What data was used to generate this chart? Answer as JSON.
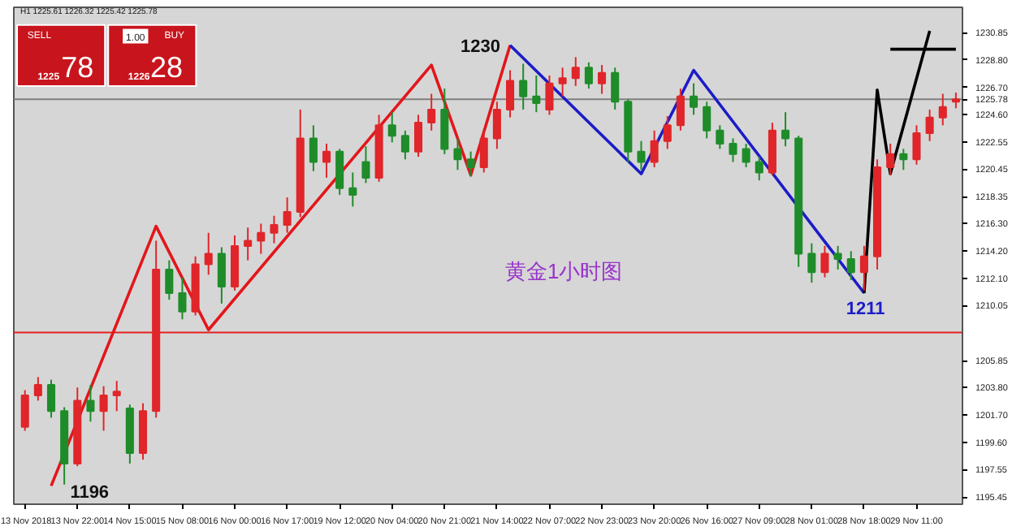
{
  "chart_data": {
    "type": "candlestick",
    "categories": [
      "13 Nov 2018",
      null,
      null,
      null,
      "13 Nov 22:00",
      null,
      null,
      null,
      "14 Nov 15:00",
      null,
      null,
      null,
      "15 Nov 08:00",
      null,
      null,
      null,
      "16 Nov 00:00",
      null,
      null,
      null,
      "16 Nov 17:00",
      null,
      null,
      null,
      "19 Nov 12:00",
      null,
      null,
      null,
      "20 Nov 04:00",
      null,
      null,
      null,
      "20 Nov 21:00",
      null,
      null,
      null,
      "21 Nov 14:00",
      null,
      null,
      null,
      "22 Nov 07:00",
      null,
      null,
      null,
      "22 Nov 23:00",
      null,
      null,
      null,
      "23 Nov 20:00",
      null,
      null,
      null,
      "26 Nov 16:00",
      null,
      null,
      null,
      "27 Nov 09:00",
      null,
      null,
      null,
      "28 Nov 01:00",
      null,
      null,
      null,
      "28 Nov 18:00",
      null,
      null,
      null,
      "29 Nov 11:00",
      null,
      null,
      null
    ],
    "ohlc": [
      [
        1200.8,
        1203.6,
        1200.5,
        1203.2
      ],
      [
        1203.2,
        1204.6,
        1202.8,
        1204.0
      ],
      [
        1204.0,
        1204.4,
        1201.5,
        1202.0
      ],
      [
        1202.0,
        1202.3,
        1196.4,
        1198.0
      ],
      [
        1198.0,
        1203.8,
        1197.8,
        1202.8
      ],
      [
        1202.8,
        1204.0,
        1201.2,
        1202.0
      ],
      [
        1202.0,
        1203.9,
        1200.5,
        1203.2
      ],
      [
        1203.2,
        1204.3,
        1202.0,
        1203.5
      ],
      [
        1202.2,
        1202.5,
        1198.0,
        1198.8
      ],
      [
        1198.8,
        1202.6,
        1198.3,
        1202.0
      ],
      [
        1202.0,
        1215.0,
        1201.5,
        1212.8
      ],
      [
        1212.8,
        1213.5,
        1210.5,
        1211.0
      ],
      [
        1211.0,
        1212.2,
        1209.0,
        1209.6
      ],
      [
        1209.6,
        1213.8,
        1209.3,
        1213.2
      ],
      [
        1213.2,
        1215.6,
        1212.4,
        1214.0
      ],
      [
        1214.0,
        1214.5,
        1210.2,
        1211.5
      ],
      [
        1211.5,
        1215.4,
        1211.2,
        1214.6
      ],
      [
        1214.6,
        1216.0,
        1213.5,
        1215.0
      ],
      [
        1215.0,
        1216.3,
        1214.0,
        1215.6
      ],
      [
        1215.6,
        1216.9,
        1214.8,
        1216.2
      ],
      [
        1216.2,
        1218.3,
        1215.6,
        1217.2
      ],
      [
        1217.2,
        1225.0,
        1216.8,
        1222.8
      ],
      [
        1222.8,
        1223.8,
        1220.3,
        1221.0
      ],
      [
        1221.0,
        1222.4,
        1219.8,
        1221.8
      ],
      [
        1221.8,
        1222.0,
        1218.5,
        1219.0
      ],
      [
        1219.0,
        1220.2,
        1217.6,
        1218.5
      ],
      [
        1221.0,
        1222.2,
        1219.4,
        1219.8
      ],
      [
        1219.8,
        1224.6,
        1219.5,
        1223.8
      ],
      [
        1223.8,
        1224.8,
        1222.5,
        1223.0
      ],
      [
        1223.0,
        1223.4,
        1221.2,
        1221.8
      ],
      [
        1221.8,
        1224.6,
        1221.4,
        1224.0
      ],
      [
        1224.0,
        1226.2,
        1223.4,
        1225.0
      ],
      [
        1225.0,
        1226.6,
        1221.6,
        1222.0
      ],
      [
        1222.0,
        1222.8,
        1220.4,
        1221.2
      ],
      [
        1221.2,
        1221.8,
        1219.9,
        1220.6
      ],
      [
        1220.6,
        1223.5,
        1220.2,
        1222.8
      ],
      [
        1222.8,
        1225.6,
        1222.0,
        1225.0
      ],
      [
        1225.0,
        1228.0,
        1224.4,
        1227.2
      ],
      [
        1227.2,
        1228.5,
        1225.0,
        1226.0
      ],
      [
        1226.0,
        1227.6,
        1224.8,
        1225.5
      ],
      [
        1225.0,
        1227.6,
        1224.6,
        1227.0
      ],
      [
        1227.0,
        1228.2,
        1226.0,
        1227.4
      ],
      [
        1227.4,
        1229.0,
        1226.8,
        1228.2
      ],
      [
        1228.2,
        1228.6,
        1226.6,
        1227.0
      ],
      [
        1227.0,
        1228.4,
        1226.2,
        1227.8
      ],
      [
        1227.8,
        1228.2,
        1225.0,
        1225.6
      ],
      [
        1225.6,
        1225.8,
        1221.0,
        1221.8
      ],
      [
        1221.8,
        1222.6,
        1220.4,
        1221.0
      ],
      [
        1221.0,
        1223.4,
        1220.6,
        1222.6
      ],
      [
        1222.6,
        1224.5,
        1222.0,
        1223.8
      ],
      [
        1223.8,
        1226.6,
        1223.4,
        1226.0
      ],
      [
        1226.0,
        1227.0,
        1224.6,
        1225.2
      ],
      [
        1225.2,
        1225.6,
        1222.8,
        1223.4
      ],
      [
        1223.4,
        1223.8,
        1222.0,
        1222.4
      ],
      [
        1222.4,
        1222.8,
        1221.0,
        1221.6
      ],
      [
        1222.0,
        1222.4,
        1220.6,
        1221.0
      ],
      [
        1221.0,
        1221.4,
        1219.6,
        1220.2
      ],
      [
        1220.2,
        1224.0,
        1220.0,
        1223.4
      ],
      [
        1223.4,
        1224.8,
        1222.2,
        1222.8
      ],
      [
        1222.8,
        1223.0,
        1213.0,
        1214.0
      ],
      [
        1214.0,
        1214.8,
        1211.8,
        1212.6
      ],
      [
        1212.6,
        1214.6,
        1212.2,
        1214.0
      ],
      [
        1214.0,
        1214.6,
        1212.8,
        1213.6
      ],
      [
        1213.6,
        1214.2,
        1212.0,
        1212.6
      ],
      [
        1212.6,
        1214.6,
        1211.2,
        1213.8
      ],
      [
        1213.8,
        1221.2,
        1212.8,
        1220.6
      ],
      [
        1220.6,
        1222.4,
        1220.0,
        1221.6
      ],
      [
        1221.6,
        1222.0,
        1220.4,
        1221.2
      ],
      [
        1221.2,
        1223.8,
        1220.8,
        1223.2
      ],
      [
        1223.2,
        1225.0,
        1222.6,
        1224.4
      ],
      [
        1224.4,
        1226.2,
        1223.8,
        1225.2
      ],
      [
        1225.6,
        1226.3,
        1225.1,
        1225.78
      ]
    ],
    "colors": [
      "#e0262a",
      "#e0262a",
      "#1f8c2a",
      "#1f8c2a",
      "#e0262a",
      "#1f8c2a",
      "#e0262a",
      "#e0262a",
      "#1f8c2a",
      "#e0262a",
      "#e0262a",
      "#1f8c2a",
      "#1f8c2a",
      "#e0262a",
      "#e0262a",
      "#1f8c2a",
      "#e0262a",
      "#e0262a",
      "#e0262a",
      "#e0262a",
      "#e0262a",
      "#e0262a",
      "#1f8c2a",
      "#e0262a",
      "#1f8c2a",
      "#1f8c2a",
      "#1f8c2a",
      "#e0262a",
      "#1f8c2a",
      "#1f8c2a",
      "#e0262a",
      "#e0262a",
      "#1f8c2a",
      "#1f8c2a",
      "#1f8c2a",
      "#e0262a",
      "#e0262a",
      "#e0262a",
      "#1f8c2a",
      "#1f8c2a",
      "#e0262a",
      "#e0262a",
      "#e0262a",
      "#1f8c2a",
      "#e0262a",
      "#1f8c2a",
      "#1f8c2a",
      "#1f8c2a",
      "#e0262a",
      "#e0262a",
      "#e0262a",
      "#1f8c2a",
      "#1f8c2a",
      "#1f8c2a",
      "#1f8c2a",
      "#1f8c2a",
      "#1f8c2a",
      "#e0262a",
      "#1f8c2a",
      "#1f8c2a",
      "#1f8c2a",
      "#e0262a",
      "#1f8c2a",
      "#1f8c2a",
      "#e0262a",
      "#e0262a",
      "#e0262a",
      "#1f8c2a",
      "#e0262a",
      "#e0262a",
      "#e0262a",
      "#e0262a"
    ],
    "series": [
      {
        "type": "line",
        "color": "#e3161b",
        "values": [
          null,
          null,
          1196.3,
          null,
          null,
          null,
          null,
          null,
          null,
          null,
          1216.1,
          null,
          null,
          null,
          1208.2,
          null,
          null,
          null,
          null,
          null,
          null,
          null,
          null,
          null,
          null,
          null,
          null,
          null,
          null,
          null,
          null,
          1228.4,
          null,
          null,
          1220.0,
          null,
          null,
          1229.9,
          null,
          null,
          null,
          null,
          null,
          null,
          null,
          null,
          null,
          null,
          null,
          null,
          null,
          null,
          null,
          null,
          null,
          null,
          null,
          null,
          null,
          null,
          null,
          null,
          null,
          null,
          null,
          null,
          null,
          null,
          null,
          null,
          null,
          null
        ]
      },
      {
        "type": "line",
        "color": "#1c1cc8",
        "values": [
          null,
          null,
          null,
          null,
          null,
          null,
          null,
          null,
          null,
          null,
          null,
          null,
          null,
          null,
          null,
          null,
          null,
          null,
          null,
          null,
          null,
          null,
          null,
          null,
          null,
          null,
          null,
          null,
          null,
          null,
          null,
          null,
          null,
          null,
          null,
          null,
          null,
          1229.9,
          null,
          null,
          null,
          null,
          null,
          null,
          null,
          null,
          null,
          1220.1,
          null,
          null,
          null,
          1228.0,
          null,
          null,
          null,
          null,
          null,
          null,
          null,
          null,
          null,
          null,
          null,
          null,
          1211.0,
          null,
          null,
          null,
          null,
          null,
          null,
          null
        ]
      },
      {
        "type": "line",
        "color": "#000000",
        "values": [
          null,
          null,
          null,
          null,
          null,
          null,
          null,
          null,
          null,
          null,
          null,
          null,
          null,
          null,
          null,
          null,
          null,
          null,
          null,
          null,
          null,
          null,
          null,
          null,
          null,
          null,
          null,
          null,
          null,
          null,
          null,
          null,
          null,
          null,
          null,
          null,
          null,
          null,
          null,
          null,
          null,
          null,
          null,
          null,
          null,
          null,
          null,
          null,
          null,
          null,
          null,
          null,
          null,
          null,
          null,
          null,
          null,
          null,
          null,
          null,
          null,
          null,
          null,
          null,
          1211.0,
          1226.5,
          1220.1,
          null,
          null,
          1231.0,
          null,
          null
        ]
      },
      {
        "type": "line",
        "color": "#000000",
        "values": [
          null,
          null,
          null,
          null,
          null,
          null,
          null,
          null,
          null,
          null,
          null,
          null,
          null,
          null,
          null,
          null,
          null,
          null,
          null,
          null,
          null,
          null,
          null,
          null,
          null,
          null,
          null,
          null,
          null,
          null,
          null,
          null,
          null,
          null,
          null,
          null,
          null,
          null,
          null,
          null,
          null,
          null,
          null,
          null,
          null,
          null,
          null,
          null,
          null,
          null,
          null,
          null,
          null,
          null,
          null,
          null,
          null,
          null,
          null,
          null,
          null,
          null,
          null,
          null,
          null,
          null,
          1229.6,
          null,
          null,
          null,
          null,
          1229.6
        ]
      }
    ],
    "ref_lines": [
      {
        "axis": "y",
        "value": 1225.78,
        "label": "1225.78",
        "color": "#808080"
      },
      {
        "axis": "y",
        "value": 1208.0,
        "color": "#e32020"
      }
    ],
    "annotations": [
      "1196",
      "1230",
      "1211",
      "黄金1小时图",
      "H1  1225.61 1226.32 1225.42 1225.78",
      "SELL",
      "1.00",
      "BUY",
      "1225",
      "78",
      "1226",
      "28"
    ],
    "ylim": [
      1194.9,
      1232.8
    ],
    "yticks": [
      1230.85,
      {
        "value": 1228.8,
        "label": "1228.80"
      },
      {
        "value": 1226.7,
        "label": "1226.70"
      },
      {
        "value": 1224.6,
        "label": "1224.60"
      },
      1222.55,
      1220.45,
      1218.35,
      {
        "value": 1216.3,
        "label": "1216.30"
      },
      {
        "value": 1214.2,
        "label": "1214.20"
      },
      {
        "value": 1212.1,
        "label": "1212.10"
      },
      1210.05,
      1205.85,
      {
        "value": 1203.8,
        "label": "1203.80"
      },
      {
        "value": 1201.7,
        "label": "1201.70"
      },
      {
        "value": 1199.6,
        "label": "1199.60"
      },
      1197.55,
      1195.45
    ]
  }
}
